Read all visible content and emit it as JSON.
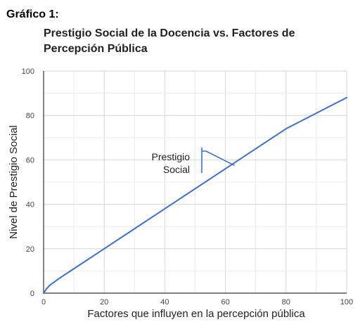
{
  "figure_label": "Gráfico 1:",
  "chart_data": {
    "type": "line",
    "title_lines": [
      "Prestigio Social de la Docencia vs. Factores de",
      "Percepción Pública"
    ],
    "xlabel": "Factores que influyen en la percepción pública",
    "ylabel": "Nivel de Prestigio Social",
    "xlim": [
      0,
      100
    ],
    "ylim": [
      0,
      100
    ],
    "xticks": [
      0,
      20,
      40,
      60,
      80,
      100
    ],
    "yticks": [
      0,
      20,
      40,
      60,
      80,
      100
    ],
    "grid": true,
    "series": [
      {
        "color": "#3c6fd1",
        "x": [
          0,
          1,
          2,
          5,
          10,
          20,
          30,
          40,
          50,
          60,
          70,
          80,
          90,
          100
        ],
        "y": [
          0,
          2,
          3.5,
          6.5,
          11,
          20,
          29,
          38,
          47,
          56,
          65,
          74,
          81,
          88
        ]
      }
    ],
    "annotation": {
      "lines": [
        "Prestigio",
        "Social"
      ],
      "point": [
        63,
        57.5
      ],
      "color": "#3c6fd1"
    }
  }
}
